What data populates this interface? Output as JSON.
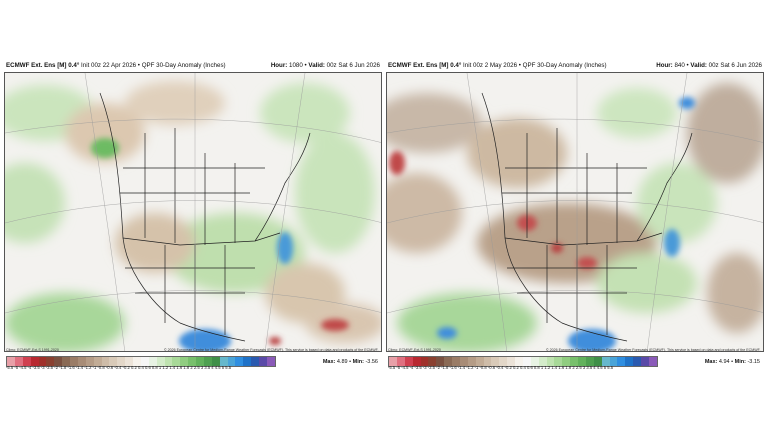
{
  "panels": [
    {
      "model": "ECMWF Ext. Ens [M] 0.4°",
      "init": "Init 00z 22 Apr 2026",
      "product": "QPF 30-Day Anomaly (Inches)",
      "hour_label": "Hour:",
      "hour": "1080",
      "valid_label": "Valid:",
      "valid": "00z Sat 6 Jun 2026",
      "climo": "Climo: ECMWF-Ext-S 1991-2020",
      "copyright": "© 2026 European Centre for Medium-Range Weather Forecasts (ECMWF). This service is based on data and products of the ECMWF.",
      "max_label": "Max:",
      "max": "4.89",
      "min_label": "Min:",
      "min": "-3.56"
    },
    {
      "model": "ECMWF Ext. Ens [M] 0.4°",
      "init": "Init 00z 2 May 2026",
      "product": "QPF 30-Day Anomaly (Inches)",
      "hour_label": "Hour:",
      "hour": "840",
      "valid_label": "Valid:",
      "valid": "00z Sat 6 Jun 2026",
      "climo": "Climo: ECMWF-Ext-S 1991-2020",
      "copyright": "© 2026 European Centre for Medium-Range Weather Forecasts (ECMWF). This service is based on data and products of the ECMWF.",
      "max_label": "Max:",
      "max": "4.94",
      "min_label": "Min:",
      "min": "-3.15"
    }
  ],
  "colorbar": {
    "ticks": "-5.5 -5 -4.5 -4 -3.5 -3 -2.5 -2 -1.8 -1.6 -1.4 -1.2 -1 -0.8 -0.6 -0.4 -0.2 0.2 0.4 0.6 0.8 1 1.2 1.4 1.6 1.8 2 2.5 3 3.5 4 4.5 5 5.5",
    "colors": [
      "#e8a0a8",
      "#e07080",
      "#d04050",
      "#b82830",
      "#a0302a",
      "#8a4030",
      "#7a5040",
      "#8a6a55",
      "#9a7c66",
      "#a88c76",
      "#b59c86",
      "#c2ac96",
      "#cebca8",
      "#d9cab8",
      "#e3d7c8",
      "#ece3d8",
      "#f6f2ec",
      "#f6f6f6",
      "#e8f3e4",
      "#d4ecca",
      "#bfe3b0",
      "#a8d998",
      "#90cd80",
      "#78c06c",
      "#62b25c",
      "#4ea050",
      "#3f8f48",
      "#66b8cc",
      "#4aa4d8",
      "#2f8ee0",
      "#1f72c8",
      "#2a5ab0",
      "#5a4aa8",
      "#8a5ab8"
    ]
  }
}
